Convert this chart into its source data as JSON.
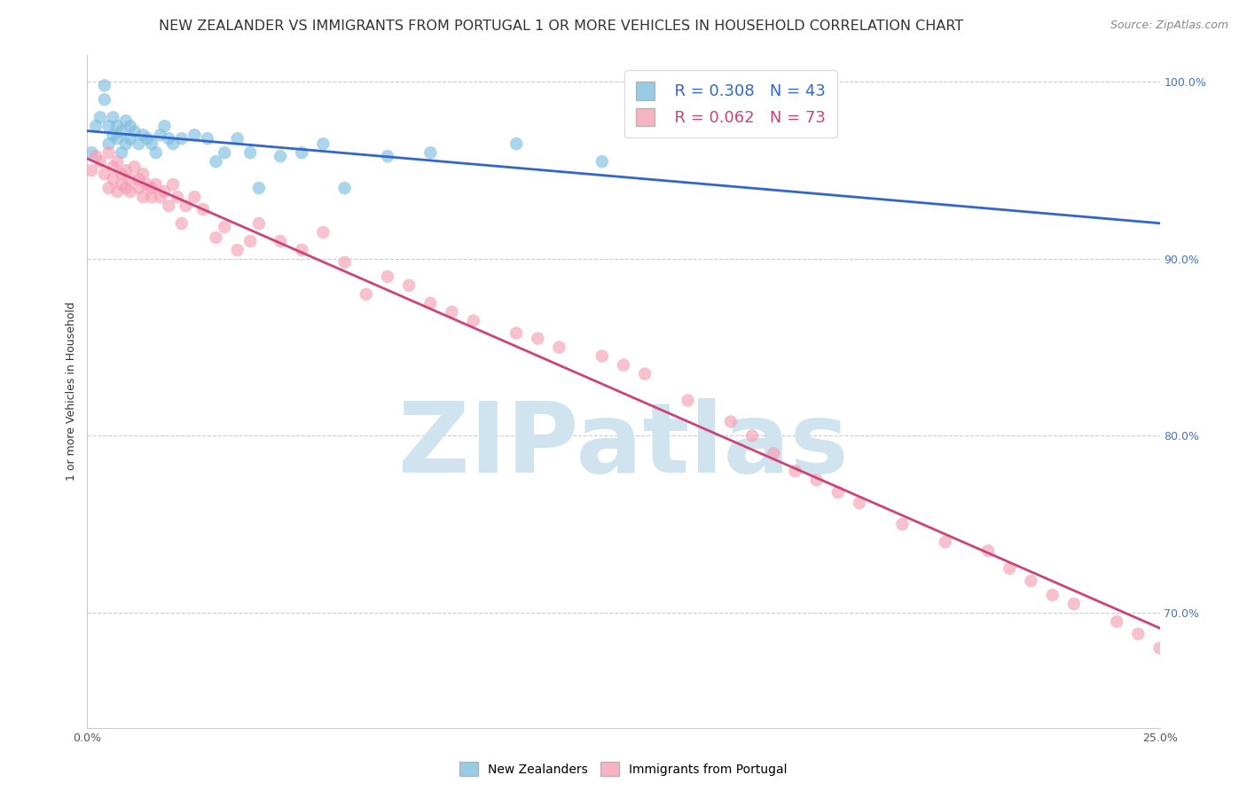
{
  "title": "NEW ZEALANDER VS IMMIGRANTS FROM PORTUGAL 1 OR MORE VEHICLES IN HOUSEHOLD CORRELATION CHART",
  "source": "Source: ZipAtlas.com",
  "ylabel": "1 or more Vehicles in Household",
  "R_blue": 0.308,
  "N_blue": 43,
  "R_pink": 0.062,
  "N_pink": 73,
  "xmin": 0.0,
  "xmax": 0.25,
  "ymin": 0.635,
  "ymax": 1.015,
  "yticks": [
    0.7,
    0.8,
    0.9,
    1.0
  ],
  "ytick_labels": [
    "70.0%",
    "80.0%",
    "90.0%",
    "100.0%"
  ],
  "xticks": [
    0.0,
    0.05,
    0.1,
    0.15,
    0.2,
    0.25
  ],
  "xtick_labels": [
    "0.0%",
    "",
    "",
    "",
    "",
    "25.0%"
  ],
  "blue_color": "#7fbfdf",
  "pink_color": "#f4a0b5",
  "blue_line_color": "#3366cc",
  "pink_line_color": "#cc4477",
  "blue_x": [
    0.001,
    0.002,
    0.003,
    0.004,
    0.004,
    0.005,
    0.005,
    0.006,
    0.006,
    0.007,
    0.007,
    0.008,
    0.008,
    0.009,
    0.009,
    0.01,
    0.01,
    0.011,
    0.012,
    0.013,
    0.014,
    0.015,
    0.016,
    0.017,
    0.018,
    0.019,
    0.02,
    0.022,
    0.025,
    0.028,
    0.03,
    0.032,
    0.035,
    0.038,
    0.04,
    0.045,
    0.05,
    0.055,
    0.06,
    0.07,
    0.08,
    0.1,
    0.12
  ],
  "blue_y": [
    0.96,
    0.975,
    0.98,
    0.99,
    0.998,
    0.965,
    0.975,
    0.97,
    0.98,
    0.968,
    0.975,
    0.972,
    0.96,
    0.965,
    0.978,
    0.968,
    0.975,
    0.972,
    0.965,
    0.97,
    0.968,
    0.965,
    0.96,
    0.97,
    0.975,
    0.968,
    0.965,
    0.968,
    0.97,
    0.968,
    0.955,
    0.96,
    0.968,
    0.96,
    0.94,
    0.958,
    0.96,
    0.965,
    0.94,
    0.958,
    0.96,
    0.965,
    0.955
  ],
  "pink_x": [
    0.001,
    0.002,
    0.003,
    0.004,
    0.005,
    0.005,
    0.006,
    0.006,
    0.007,
    0.007,
    0.008,
    0.008,
    0.009,
    0.009,
    0.01,
    0.01,
    0.011,
    0.012,
    0.012,
    0.013,
    0.013,
    0.014,
    0.015,
    0.015,
    0.016,
    0.017,
    0.018,
    0.019,
    0.02,
    0.021,
    0.022,
    0.023,
    0.025,
    0.027,
    0.03,
    0.032,
    0.035,
    0.038,
    0.04,
    0.045,
    0.05,
    0.055,
    0.06,
    0.065,
    0.07,
    0.075,
    0.08,
    0.085,
    0.09,
    0.1,
    0.105,
    0.11,
    0.12,
    0.125,
    0.13,
    0.14,
    0.15,
    0.155,
    0.16,
    0.165,
    0.17,
    0.175,
    0.18,
    0.19,
    0.2,
    0.21,
    0.215,
    0.22,
    0.225,
    0.23,
    0.24,
    0.245,
    0.25
  ],
  "pink_y": [
    0.95,
    0.958,
    0.955,
    0.948,
    0.94,
    0.96,
    0.952,
    0.945,
    0.938,
    0.955,
    0.948,
    0.942,
    0.95,
    0.94,
    0.945,
    0.938,
    0.952,
    0.945,
    0.94,
    0.948,
    0.935,
    0.942,
    0.94,
    0.935,
    0.942,
    0.935,
    0.938,
    0.93,
    0.942,
    0.935,
    0.92,
    0.93,
    0.935,
    0.928,
    0.912,
    0.918,
    0.905,
    0.91,
    0.92,
    0.91,
    0.905,
    0.915,
    0.898,
    0.88,
    0.89,
    0.885,
    0.875,
    0.87,
    0.865,
    0.858,
    0.855,
    0.85,
    0.845,
    0.84,
    0.835,
    0.82,
    0.808,
    0.8,
    0.79,
    0.78,
    0.775,
    0.768,
    0.762,
    0.75,
    0.74,
    0.735,
    0.725,
    0.718,
    0.71,
    0.705,
    0.695,
    0.688,
    0.68
  ],
  "watermark_text": "ZIPatlas",
  "watermark_color": "#d0e4f0",
  "legend_label_blue": "New Zealanders",
  "legend_label_pink": "Immigrants from Portugal",
  "title_fontsize": 11.5,
  "axis_label_fontsize": 9,
  "tick_fontsize": 9,
  "right_tick_color": "#4472c4"
}
